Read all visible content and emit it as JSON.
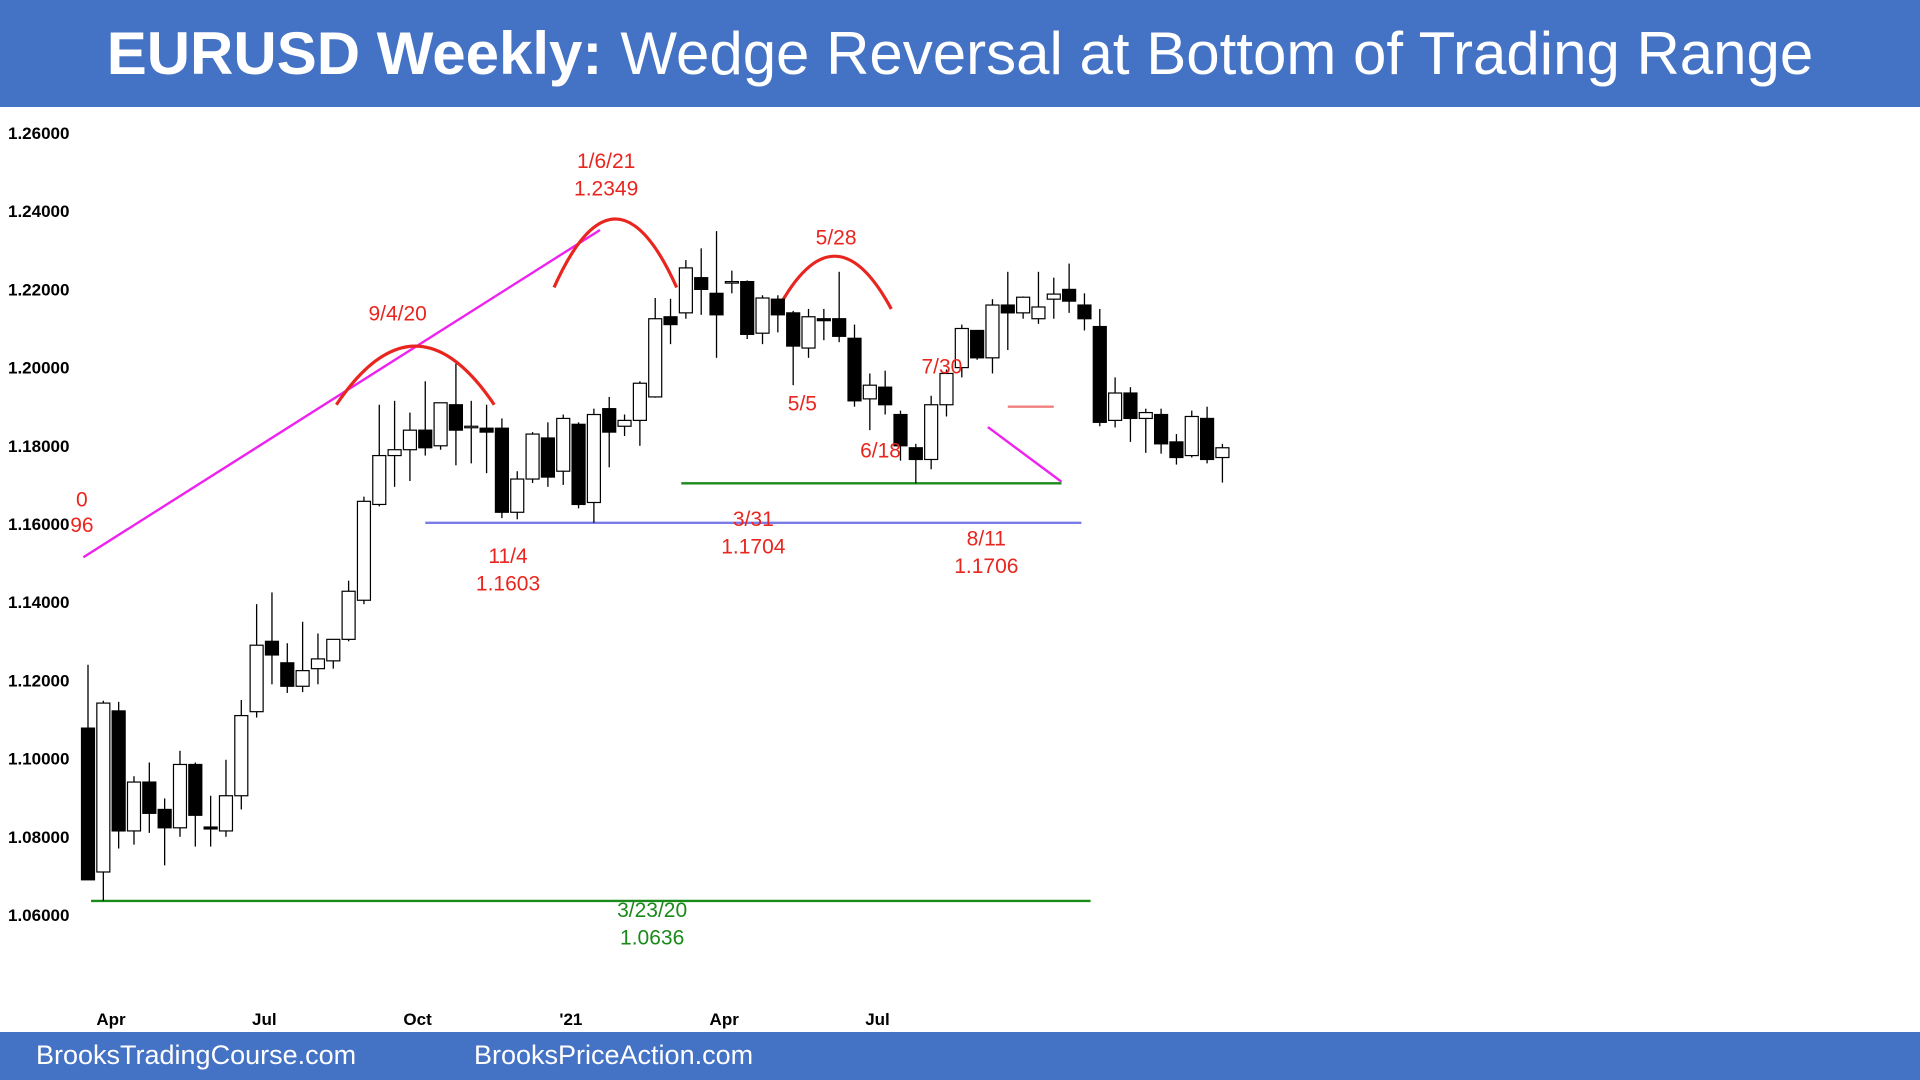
{
  "header": {
    "title_bold": "EURUSD Weekly:",
    "title_rest": "Wedge Reversal at Bottom of Trading Range"
  },
  "footer": {
    "left": "BrooksTradingCourse.com",
    "right": "BrooksPriceAction.com"
  },
  "colors": {
    "banner": "#4472c4",
    "annotation_red": "#e8261f",
    "support_green": "#1a8a1a",
    "range_blue": "#7b7bea",
    "wedge_magenta": "#ee22ee",
    "candle": "#000000"
  },
  "chart_data": {
    "type": "candlestick",
    "title": "EURUSD Weekly: Wedge Reversal at Bottom of Trading Range",
    "ylim": [
      1.052,
      1.265
    ],
    "y_ticks": [
      "1.26000",
      "1.24000",
      "1.22000",
      "1.20000",
      "1.18000",
      "1.16000",
      "1.14000",
      "1.12000",
      "1.10000",
      "1.08000",
      "1.06000"
    ],
    "x_ticks": [
      {
        "label": "Apr",
        "index": 1.5
      },
      {
        "label": "Jul",
        "index": 11.5
      },
      {
        "label": "Oct",
        "index": 21.5
      },
      {
        "label": "'21",
        "index": 31.5
      },
      {
        "label": "Apr",
        "index": 41.5
      },
      {
        "label": "Jul",
        "index": 51.5
      }
    ],
    "candles": [
      [
        1.1078,
        1.124,
        1.069,
        1.069
      ],
      [
        1.071,
        1.1148,
        1.0636,
        1.1142
      ],
      [
        1.1122,
        1.1145,
        1.077,
        1.0815
      ],
      [
        1.0815,
        1.0955,
        1.078,
        1.094
      ],
      [
        1.094,
        1.099,
        1.081,
        1.086
      ],
      [
        1.087,
        1.0898,
        1.0727,
        1.0823
      ],
      [
        1.0823,
        1.102,
        1.08,
        1.0985
      ],
      [
        1.0985,
        1.099,
        1.0775,
        1.0855
      ],
      [
        1.0825,
        1.0905,
        1.0775,
        1.082
      ],
      [
        1.0815,
        1.0997,
        1.08,
        1.0905
      ],
      [
        1.0905,
        1.115,
        1.087,
        1.111
      ],
      [
        1.112,
        1.1395,
        1.1105,
        1.129
      ],
      [
        1.13,
        1.1425,
        1.119,
        1.1265
      ],
      [
        1.1245,
        1.1295,
        1.1168,
        1.1185
      ],
      [
        1.1185,
        1.135,
        1.117,
        1.1225
      ],
      [
        1.123,
        1.132,
        1.119,
        1.1255
      ],
      [
        1.125,
        1.13,
        1.123,
        1.1305
      ],
      [
        1.1305,
        1.1455,
        1.13,
        1.1428
      ],
      [
        1.1405,
        1.167,
        1.1395,
        1.1658
      ],
      [
        1.165,
        1.1905,
        1.1645,
        1.1775
      ],
      [
        1.1775,
        1.1915,
        1.1695,
        1.179
      ],
      [
        1.179,
        1.1885,
        1.171,
        1.184
      ],
      [
        1.184,
        1.1965,
        1.1775,
        1.1795
      ],
      [
        1.18,
        1.191,
        1.179,
        1.191
      ],
      [
        1.1905,
        1.201,
        1.175,
        1.184
      ],
      [
        1.185,
        1.1915,
        1.1755,
        1.185
      ],
      [
        1.1845,
        1.1905,
        1.173,
        1.1835
      ],
      [
        1.1845,
        1.187,
        1.1615,
        1.163
      ],
      [
        1.163,
        1.1735,
        1.1612,
        1.1715
      ],
      [
        1.1715,
        1.1835,
        1.1705,
        1.183
      ],
      [
        1.182,
        1.186,
        1.1695,
        1.172
      ],
      [
        1.1735,
        1.188,
        1.17,
        1.187
      ],
      [
        1.1855,
        1.186,
        1.164,
        1.165
      ],
      [
        1.1655,
        1.1895,
        1.1603,
        1.188
      ],
      [
        1.1895,
        1.1925,
        1.1745,
        1.1835
      ],
      [
        1.185,
        1.188,
        1.1825,
        1.1865
      ],
      [
        1.1865,
        1.1965,
        1.18,
        1.196
      ],
      [
        1.1925,
        1.2178,
        1.1923,
        1.2125
      ],
      [
        1.213,
        1.2176,
        1.206,
        1.211
      ],
      [
        1.214,
        1.2275,
        1.2125,
        1.2255
      ],
      [
        1.223,
        1.2305,
        1.2135,
        1.22
      ],
      [
        1.219,
        1.2349,
        1.2025,
        1.2135
      ],
      [
        1.222,
        1.2248,
        1.219,
        1.222
      ],
      [
        1.222,
        1.2223,
        1.2073,
        1.2085
      ],
      [
        1.2088,
        1.2185,
        1.206,
        1.2178
      ],
      [
        1.2175,
        1.2185,
        1.209,
        1.2135
      ],
      [
        1.214,
        1.2145,
        1.1955,
        1.2055
      ],
      [
        1.205,
        1.215,
        1.2025,
        1.213
      ],
      [
        1.2125,
        1.215,
        1.207,
        1.212
      ],
      [
        1.2125,
        1.2245,
        1.2065,
        1.208
      ],
      [
        1.2075,
        1.211,
        1.19,
        1.1915
      ],
      [
        1.192,
        1.1985,
        1.184,
        1.1955
      ],
      [
        1.195,
        1.1992,
        1.188,
        1.1905
      ],
      [
        1.188,
        1.189,
        1.1762,
        1.18
      ],
      [
        1.1795,
        1.1805,
        1.1704,
        1.1765
      ],
      [
        1.1765,
        1.1928,
        1.174,
        1.1905
      ],
      [
        1.1905,
        1.1995,
        1.1875,
        1.1985
      ],
      [
        1.2,
        1.211,
        1.1975,
        1.21
      ],
      [
        1.2095,
        1.2095,
        1.202,
        1.2025
      ],
      [
        1.2025,
        1.2175,
        1.1985,
        1.216
      ],
      [
        1.216,
        1.2245,
        1.2045,
        1.214
      ],
      [
        1.214,
        1.2182,
        1.2125,
        1.218
      ],
      [
        1.2125,
        1.2245,
        1.2112,
        1.2155
      ],
      [
        1.2175,
        1.223,
        1.2125,
        1.2188
      ],
      [
        1.22,
        1.2266,
        1.214,
        1.217
      ],
      [
        1.216,
        1.219,
        1.2095,
        1.2125
      ],
      [
        1.2105,
        1.215,
        1.185,
        1.186
      ],
      [
        1.1865,
        1.1975,
        1.1847,
        1.1935
      ],
      [
        1.1935,
        1.195,
        1.181,
        1.187
      ],
      [
        1.187,
        1.1895,
        1.1782,
        1.1885
      ],
      [
        1.188,
        1.1895,
        1.178,
        1.1805
      ],
      [
        1.181,
        1.183,
        1.1752,
        1.177
      ],
      [
        1.1775,
        1.189,
        1.177,
        1.1875
      ],
      [
        1.187,
        1.19,
        1.1755,
        1.1765
      ],
      [
        1.177,
        1.1805,
        1.1706,
        1.1795
      ]
    ],
    "lines": [
      {
        "name": "wedge-top-trendline",
        "color": "#ee22ee",
        "points": [
          [
            -0.3,
            1.1515
          ],
          [
            33.4,
            1.2352
          ]
        ]
      },
      {
        "name": "wedge-bottom-trendline",
        "color": "#ee22ee",
        "points": [
          [
            58.7,
            1.1848
          ],
          [
            63.5,
            1.1708
          ]
        ]
      },
      {
        "name": "range-bottom-line",
        "color": "#7b7bea",
        "points": [
          [
            22.0,
            1.1603
          ],
          [
            64.8,
            1.1603
          ]
        ]
      },
      {
        "name": "support-3-31-line",
        "color": "#1a8a1a",
        "points": [
          [
            38.7,
            1.1704
          ],
          [
            63.5,
            1.1704
          ]
        ]
      },
      {
        "name": "covid-low-line",
        "color": "#1a8a1a",
        "points": [
          [
            0.2,
            1.0636
          ],
          [
            65.4,
            1.0636
          ]
        ]
      },
      {
        "name": "7-30-high-line",
        "color": "#f08080",
        "points": [
          [
            60.0,
            1.19
          ],
          [
            63.0,
            1.19
          ]
        ]
      }
    ],
    "arcs": [
      {
        "name": "top-arc-9-4-20",
        "from": [
          16.2,
          1.1905
        ],
        "to": [
          26.5,
          1.1905
        ],
        "peak": 1.2055
      },
      {
        "name": "top-arc-1-6-21",
        "from": [
          30.4,
          1.2205
        ],
        "to": [
          38.4,
          1.2205
        ],
        "peak": 1.238
      },
      {
        "name": "top-arc-5-28",
        "from": [
          45.0,
          1.215
        ],
        "to": [
          52.4,
          1.215
        ],
        "peak": 1.2285
      }
    ],
    "annotations": [
      {
        "text": "9/4/20",
        "x": 20.2,
        "y": 1.212,
        "color": "#e8261f"
      },
      {
        "text": "1/6/21",
        "x": 33.8,
        "y": 1.251,
        "color": "#e8261f"
      },
      {
        "text": "1.2349",
        "x": 33.8,
        "y": 1.244,
        "color": "#e8261f"
      },
      {
        "text": "5/28",
        "x": 48.8,
        "y": 1.2315,
        "color": "#e8261f"
      },
      {
        "text": "7/30",
        "x": 55.7,
        "y": 1.1985,
        "color": "#e8261f"
      },
      {
        "text": "5/5",
        "x": 46.6,
        "y": 1.189,
        "color": "#e8261f"
      },
      {
        "text": "6/18",
        "x": 51.7,
        "y": 1.177,
        "color": "#e8261f"
      },
      {
        "text": "11/4",
        "x": 27.4,
        "y": 1.15,
        "color": "#e8261f"
      },
      {
        "text": "1.1603",
        "x": 27.4,
        "y": 1.143,
        "color": "#e8261f"
      },
      {
        "text": "3/31",
        "x": 43.4,
        "y": 1.1595,
        "color": "#e8261f"
      },
      {
        "text": "1.1704",
        "x": 43.4,
        "y": 1.1525,
        "color": "#e8261f"
      },
      {
        "text": "8/11",
        "x": 58.6,
        "y": 1.1545,
        "color": "#e8261f"
      },
      {
        "text": "1.1706",
        "x": 58.6,
        "y": 1.1475,
        "color": "#e8261f"
      },
      {
        "text": "3/23/20",
        "x": 36.8,
        "y": 1.0595,
        "color": "#1a8a1a"
      },
      {
        "text": "1.0636",
        "x": 36.8,
        "y": 1.0525,
        "color": "#1a8a1a"
      },
      {
        "text": "0",
        "x": -0.4,
        "y": 1.1645,
        "color": "#e8261f"
      },
      {
        "text": "96",
        "x": -0.4,
        "y": 1.158,
        "color": "#e8261f"
      }
    ]
  }
}
